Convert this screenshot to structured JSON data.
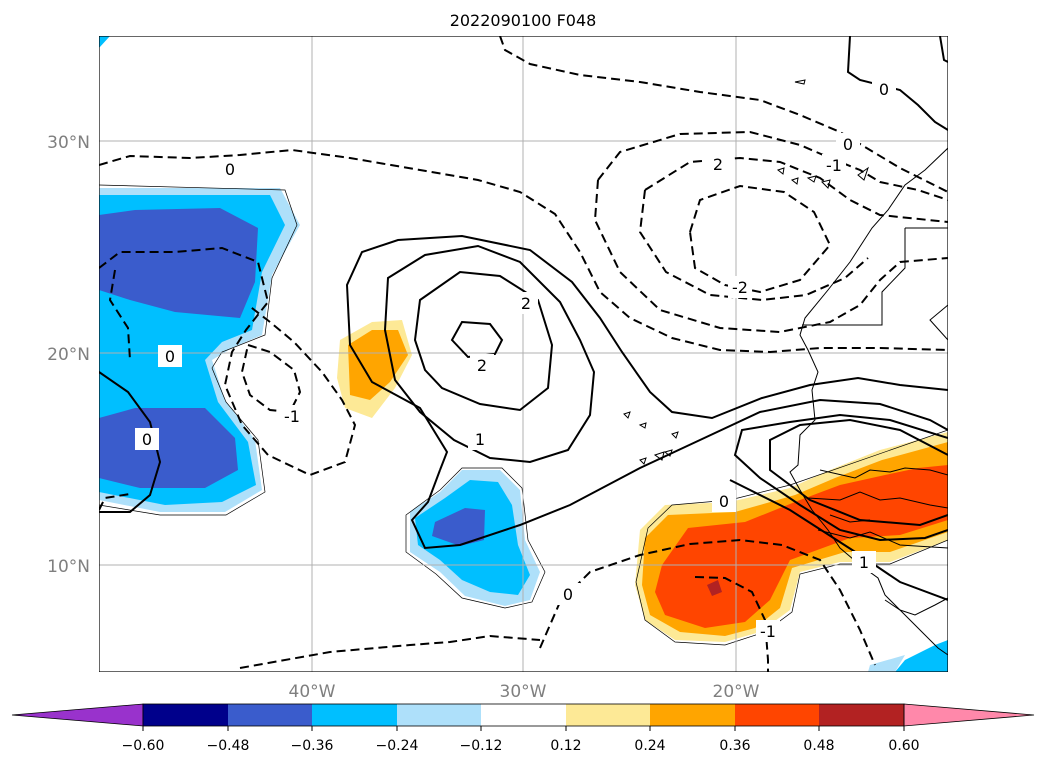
{
  "title": "2022090100 F048",
  "map": {
    "lat_labels": [
      "30°N",
      "20°N",
      "10°N"
    ],
    "lon_labels": [
      "40°W",
      "30°W",
      "20°W"
    ],
    "contour_labels": [
      "0",
      "2",
      "1",
      "0",
      "-1",
      "0",
      "2",
      "2",
      "1",
      "0",
      "2",
      "-2",
      "1",
      "0",
      "0",
      "-1",
      "1"
    ],
    "colors": {
      "deep_blue": "#3a5ccc",
      "blue": "#00bfff",
      "light_blue": "#aee0fa",
      "light_yellow": "#fde996",
      "orange": "#ffa500",
      "red_orange": "#ff4500",
      "dark_red": "#b22222",
      "grid": "#b0b0b0"
    }
  },
  "colorbar": {
    "labels": [
      "−0.60",
      "−0.48",
      "−0.36",
      "−0.24",
      "−0.12",
      "0.12",
      "0.24",
      "0.36",
      "0.48",
      "0.60"
    ],
    "colors": [
      "#9932cc",
      "#00008b",
      "#3a5ccc",
      "#00bfff",
      "#aee0fa",
      "#ffffff",
      "#fde996",
      "#ffa500",
      "#ff4500",
      "#b22222",
      "#ff88aa"
    ]
  }
}
